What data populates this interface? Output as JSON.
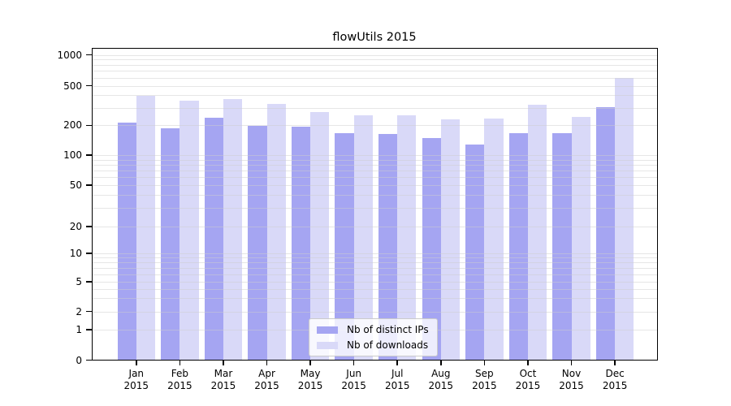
{
  "chart_data": {
    "type": "bar",
    "title": "flowUtils 2015",
    "x_axis": {
      "categories": [
        "Jan",
        "Feb",
        "Mar",
        "Apr",
        "May",
        "Jun",
        "Jul",
        "Aug",
        "Sep",
        "Oct",
        "Nov",
        "Dec"
      ],
      "year_line": "2015"
    },
    "y_axis": {
      "scale": "symlog",
      "range": [
        0,
        1000
      ],
      "ticks": [
        {
          "label": "0",
          "value": 0
        },
        {
          "label": "1",
          "value": 1
        },
        {
          "label": "2",
          "value": 2
        },
        {
          "label": "5",
          "value": 5
        },
        {
          "label": "10",
          "value": 10
        },
        {
          "label": "20",
          "value": 20
        },
        {
          "label": "50",
          "value": 50
        },
        {
          "label": "100",
          "value": 100
        },
        {
          "label": "200",
          "value": 200
        },
        {
          "label": "500",
          "value": 500
        },
        {
          "label": "1000",
          "value": 1000
        }
      ],
      "grid": "horizontal major+minor log lines, drawn over bars"
    },
    "series": [
      {
        "name": "Nb of distinct IPs",
        "color": "#a5a5f2",
        "values": [
          213,
          185,
          240,
          197,
          192,
          165,
          164,
          148,
          128,
          168,
          165,
          302
        ]
      },
      {
        "name": "Nb of downloads",
        "color": "#d9d9f8",
        "values": [
          392,
          350,
          365,
          325,
          273,
          252,
          250,
          229,
          234,
          324,
          244,
          600
        ]
      }
    ],
    "legend": {
      "position": "lower center"
    }
  }
}
